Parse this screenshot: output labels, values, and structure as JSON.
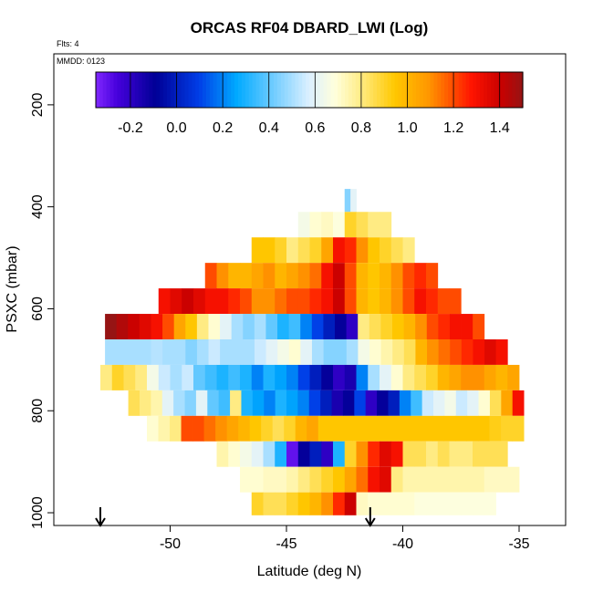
{
  "chart_data": {
    "type": "heatmap",
    "title": "ORCAS RF04 DBARD_LWI (Log)",
    "subtitle": "Flts: 4",
    "annotation": "MMDD: 0123",
    "xlabel": "Latitude (deg N)",
    "ylabel": "PSXC (mbar)",
    "xlim": [
      -55.0,
      -33.0
    ],
    "ylim": [
      1025,
      100
    ],
    "x_ticks": [
      -50,
      -45,
      -40,
      -35
    ],
    "y_ticks": [
      200,
      400,
      600,
      800,
      1000
    ],
    "colorbar": {
      "min": -0.35,
      "max": 1.5,
      "ticks": [
        -0.2,
        0.0,
        0.2,
        0.4,
        0.6,
        0.8,
        1.0,
        1.2,
        1.4
      ],
      "tick_labels": [
        "-0.2",
        "0.0",
        "0.2",
        "0.4",
        "0.6",
        "0.8",
        "1.0",
        "1.2",
        "1.4"
      ]
    },
    "markers": [
      {
        "label": "arrow",
        "lat": -53.0
      },
      {
        "label": "arrow",
        "lat": -41.4
      }
    ],
    "layers": [
      {
        "p_top": 365,
        "p_bot": 410,
        "lat_start": -42.5,
        "lat_end": -42.0,
        "values": [
          0.45,
          0.6
        ]
      },
      {
        "p_top": 410,
        "p_bot": 460,
        "lat_start": -44.5,
        "lat_end": -40.5,
        "values": [
          0.65,
          0.7,
          0.72,
          0.68,
          0.9,
          0.85,
          0.8,
          0.8
        ]
      },
      {
        "p_top": 460,
        "p_bot": 510,
        "lat_start": -46.5,
        "lat_end": -39.5,
        "values": [
          0.95,
          0.95,
          0.9,
          0.8,
          0.85,
          0.9,
          1.05,
          1.3,
          1.25,
          1.1,
          0.95,
          0.9,
          0.85,
          0.8
        ]
      },
      {
        "p_top": 510,
        "p_bot": 560,
        "lat_start": -48.5,
        "lat_end": -38.5,
        "values": [
          1.2,
          1.1,
          1.0,
          1.0,
          1.05,
          1.1,
          1.0,
          1.05,
          1.1,
          1.15,
          1.3,
          1.4,
          1.2,
          1.0,
          0.95,
          1.0,
          1.1,
          1.2,
          1.25,
          1.2
        ]
      },
      {
        "p_top": 560,
        "p_bot": 610,
        "lat_start": -50.5,
        "lat_end": -37.5,
        "values": [
          1.3,
          1.35,
          1.4,
          1.35,
          1.3,
          1.3,
          1.25,
          1.2,
          1.1,
          1.1,
          1.15,
          1.2,
          1.2,
          1.25,
          1.3,
          1.4,
          1.2,
          1.0,
          0.95,
          1.0,
          1.1,
          1.2,
          1.3,
          1.25,
          1.2,
          1.2
        ]
      },
      {
        "p_top": 610,
        "p_bot": 660,
        "lat_start": -52.8,
        "lat_end": -36.5,
        "values": [
          1.5,
          1.45,
          1.4,
          1.35,
          1.3,
          1.2,
          1.05,
          0.95,
          0.8,
          0.7,
          0.6,
          0.5,
          0.45,
          0.5,
          0.4,
          0.3,
          0.35,
          0.2,
          0.1,
          0.0,
          -0.1,
          -0.2,
          0.8,
          0.85,
          0.9,
          0.95,
          1.0,
          1.1,
          1.2,
          1.25,
          1.3,
          1.3,
          1.2
        ]
      },
      {
        "p_top": 660,
        "p_bot": 710,
        "lat_start": -52.8,
        "lat_end": -35.5,
        "values": [
          0.5,
          0.5,
          0.5,
          0.5,
          0.52,
          0.5,
          0.5,
          0.45,
          0.5,
          0.55,
          0.5,
          0.5,
          0.5,
          0.55,
          0.6,
          0.65,
          0.7,
          0.6,
          0.5,
          0.45,
          0.45,
          0.5,
          0.65,
          0.7,
          0.75,
          0.8,
          0.85,
          1.0,
          1.1,
          1.15,
          1.2,
          1.25,
          1.3,
          1.35,
          1.3
        ]
      },
      {
        "p_top": 710,
        "p_bot": 760,
        "lat_start": -53.0,
        "lat_end": -35.0,
        "values": [
          0.8,
          0.9,
          0.85,
          0.8,
          0.65,
          0.55,
          0.5,
          0.55,
          0.4,
          0.35,
          0.3,
          0.35,
          0.3,
          0.2,
          0.3,
          0.25,
          0.2,
          0.1,
          0.0,
          -0.1,
          -0.2,
          -0.15,
          0.2,
          0.5,
          0.6,
          0.7,
          0.8,
          0.85,
          0.9,
          1.0,
          1.05,
          1.1,
          1.1,
          1.05,
          1.0,
          1.05
        ]
      },
      {
        "p_top": 760,
        "p_bot": 810,
        "lat_start": -51.8,
        "lat_end": -34.8,
        "values": [
          0.85,
          0.8,
          0.75,
          0.6,
          0.5,
          0.45,
          0.6,
          0.4,
          0.35,
          0.8,
          0.3,
          0.25,
          0.2,
          0.3,
          0.25,
          0.2,
          0.1,
          0.0,
          -0.15,
          -0.1,
          0.1,
          -0.2,
          -0.1,
          0.0,
          0.2,
          0.35,
          0.55,
          0.6,
          0.65,
          0.55,
          0.6,
          0.7,
          0.85,
          1.05,
          1.3
        ]
      },
      {
        "p_top": 810,
        "p_bot": 860,
        "lat_start": -51.0,
        "lat_end": -34.8,
        "values": [
          0.7,
          0.75,
          0.8,
          1.2,
          1.2,
          1.15,
          1.1,
          1.05,
          1.0,
          0.95,
          0.9,
          0.85,
          0.9,
          1.0,
          1.05,
          0.95,
          0.95,
          0.95,
          0.95,
          0.95,
          0.95,
          0.95,
          0.95,
          0.95,
          0.95,
          0.95,
          0.95,
          0.95,
          0.95,
          0.95,
          0.92,
          0.9,
          0.9
        ]
      },
      {
        "p_top": 860,
        "p_bot": 910,
        "lat_start": -48.0,
        "lat_end": -35.5,
        "values": [
          0.75,
          0.7,
          0.65,
          0.6,
          0.5,
          0.3,
          -0.3,
          -0.1,
          0.0,
          -0.2,
          0.3,
          0.9,
          1.1,
          1.25,
          1.35,
          1.3,
          0.85,
          0.85,
          0.8,
          0.85,
          0.8,
          0.8,
          0.85,
          0.85,
          0.85
        ]
      },
      {
        "p_top": 910,
        "p_bot": 960,
        "lat_start": -47.0,
        "lat_end": -35.0,
        "values": [
          0.7,
          0.7,
          0.72,
          0.72,
          0.75,
          0.8,
          0.85,
          0.9,
          0.95,
          1.05,
          1.15,
          1.3,
          1.35,
          0.8,
          0.75,
          0.75,
          0.75,
          0.75,
          0.75,
          0.75,
          0.75,
          0.72,
          0.72,
          0.72
        ]
      },
      {
        "p_top": 960,
        "p_bot": 1005,
        "lat_start": -46.5,
        "lat_end": -36.0,
        "values": [
          0.9,
          0.85,
          0.85,
          0.9,
          0.95,
          1.0,
          1.1,
          1.25,
          1.4,
          0.72,
          0.7,
          0.7,
          0.7,
          0.7,
          0.68,
          0.68,
          0.68,
          0.68,
          0.68,
          0.68,
          0.68
        ]
      }
    ]
  }
}
